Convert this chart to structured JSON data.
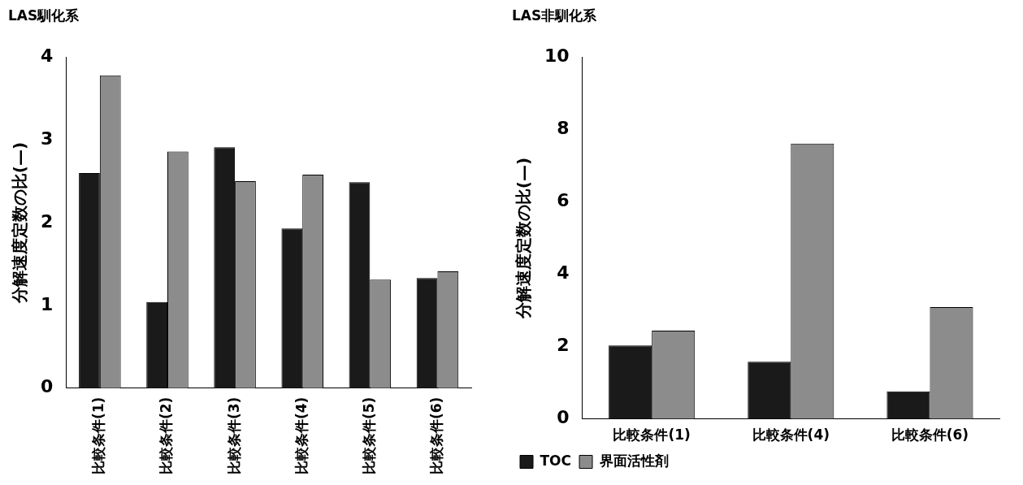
{
  "chart_data": [
    {
      "type": "bar",
      "title": "LAS馴化系",
      "ylabel": "分解速度定数の比(—)",
      "categories": [
        "比較条件(1)",
        "比較条件(2)",
        "比較条件(3)",
        "比較条件(4)",
        "比較条件(5)",
        "比較条件(6)"
      ],
      "series": [
        {
          "color": "#1a1a1a",
          "values": [
            2.6,
            1.04,
            2.91,
            1.93,
            2.49,
            1.33
          ]
        },
        {
          "color": "#8c8c8c",
          "values": [
            3.78,
            2.86,
            2.5,
            2.58,
            1.31,
            1.41
          ]
        }
      ],
      "ylim": [
        0,
        4
      ],
      "yticks": [
        0,
        1,
        2,
        3,
        4
      ],
      "grid": false,
      "legend": false
    },
    {
      "type": "bar",
      "title": "LAS非馴化系",
      "ylabel": "分解速度定数の比(—)",
      "categories": [
        "比較条件(1)",
        "比較条件(4)",
        "比較条件(6)"
      ],
      "series": [
        {
          "name": "TOC",
          "color": "#1a1a1a",
          "values": [
            2.03,
            1.58,
            0.76
          ]
        },
        {
          "name": "界面活性剤",
          "color": "#8c8c8c",
          "values": [
            2.44,
            7.61,
            3.09
          ]
        }
      ],
      "ylim": [
        0,
        10
      ],
      "yticks": [
        0,
        2,
        4,
        6,
        8,
        10
      ],
      "grid": false,
      "legend": "bottom"
    }
  ]
}
